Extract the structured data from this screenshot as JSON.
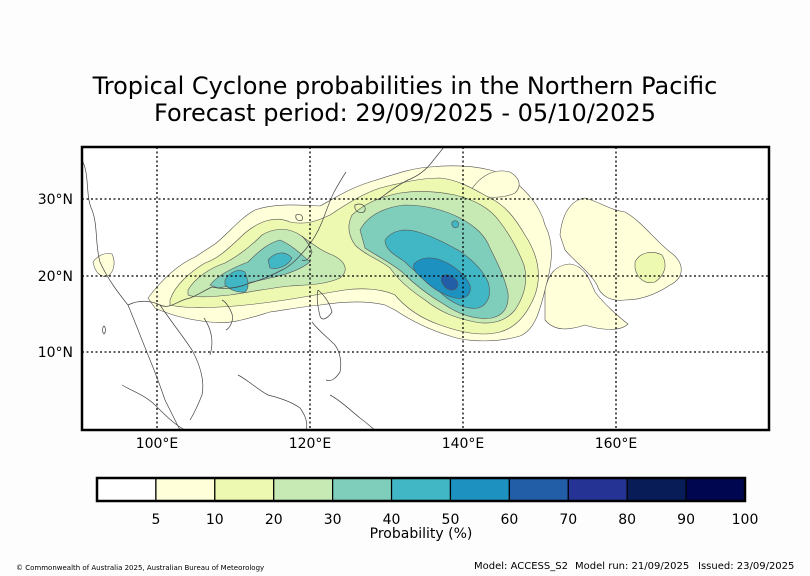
{
  "title": {
    "line1": "Tropical Cyclone probabilities in the Northern Pacific",
    "line2": "Forecast period: 29/09/2025 - 05/10/2025"
  },
  "map": {
    "lon_range": [
      90,
      180
    ],
    "lat_range": [
      0,
      37
    ],
    "lat_labels": [
      {
        "value": 30,
        "label": "30°N"
      },
      {
        "value": 20,
        "label": "20°N"
      },
      {
        "value": 10,
        "label": "10°N"
      }
    ],
    "lon_labels": [
      {
        "value": 100,
        "label": "100°E"
      },
      {
        "value": 120,
        "label": "120°E"
      },
      {
        "value": 140,
        "label": "140°E"
      },
      {
        "value": 160,
        "label": "160°E"
      }
    ]
  },
  "colorbar": {
    "label": "Probability (%)",
    "ticks": [
      "5",
      "10",
      "20",
      "30",
      "40",
      "50",
      "60",
      "70",
      "80",
      "90",
      "100"
    ],
    "colors": [
      "#ffffff",
      "#ffffd9",
      "#edf8b1",
      "#c7e9b4",
      "#7fcdbb",
      "#41b6c4",
      "#1d91c0",
      "#225ea8",
      "#253494",
      "#081d58",
      "#000650"
    ]
  },
  "footer": {
    "copyright": "© Commonwealth of Australia 2025, Australian Bureau of Meteorology",
    "model": "Model: ACCESS_S2",
    "model_run": "Model run: 21/09/2025",
    "issued": "Issued: 23/09/2025"
  }
}
